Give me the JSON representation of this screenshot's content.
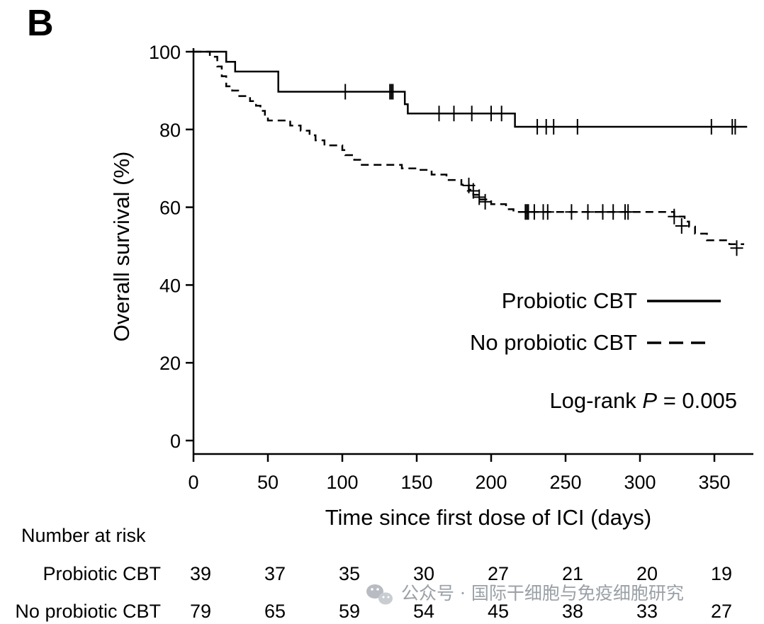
{
  "panel_label": "B",
  "watermark": "公众号 · 国际干细胞与免疫细胞研究",
  "chart_data": {
    "type": "line",
    "subtype": "kaplan-meier",
    "title": "",
    "xlabel": "Time since first dose of ICI (days)",
    "ylabel": "Overall survival (%)",
    "xlim": [
      0,
      375
    ],
    "ylim": [
      0,
      100
    ],
    "xticks": [
      0,
      50,
      100,
      150,
      200,
      250,
      300,
      350
    ],
    "yticks": [
      0,
      20,
      40,
      60,
      80,
      100
    ],
    "grid": false,
    "legend": {
      "placement": "right",
      "entries": [
        {
          "label": "Probiotic CBT",
          "style": "solid"
        },
        {
          "label": "No probiotic CBT",
          "style": "dashed"
        }
      ]
    },
    "annotation": {
      "prefix": "Log-rank ",
      "p_symbol": "P",
      "suffix": " = 0.005"
    },
    "series": [
      {
        "name": "Probiotic CBT",
        "style": "solid",
        "steps": [
          [
            0,
            100
          ],
          [
            22,
            97.4
          ],
          [
            28,
            94.9
          ],
          [
            57,
            89.7
          ],
          [
            134,
            89.7
          ],
          [
            142,
            86.5
          ],
          [
            144,
            84.1
          ],
          [
            215,
            84.1
          ],
          [
            216,
            80.7
          ],
          [
            372,
            80.7
          ]
        ],
        "censored": [
          [
            102,
            89.7
          ],
          [
            132,
            89.7
          ],
          [
            133,
            89.7
          ],
          [
            134,
            89.7
          ],
          [
            165,
            84.1
          ],
          [
            175,
            84.1
          ],
          [
            187,
            84.1
          ],
          [
            200,
            84.1
          ],
          [
            207,
            84.1
          ],
          [
            231,
            80.7
          ],
          [
            237,
            80.7
          ],
          [
            242,
            80.7
          ],
          [
            258,
            80.7
          ],
          [
            348,
            80.7
          ],
          [
            362,
            80.7
          ],
          [
            364,
            80.7
          ]
        ]
      },
      {
        "name": "No probiotic CBT",
        "style": "dashed",
        "steps": [
          [
            0,
            100
          ],
          [
            11,
            98.7
          ],
          [
            16,
            96.2
          ],
          [
            19,
            93.7
          ],
          [
            22,
            91.1
          ],
          [
            26,
            90
          ],
          [
            30,
            88.6
          ],
          [
            38,
            87.3
          ],
          [
            42,
            86.1
          ],
          [
            45,
            84.8
          ],
          [
            48,
            83.5
          ],
          [
            50,
            82.3
          ],
          [
            65,
            81
          ],
          [
            72,
            79.7
          ],
          [
            78,
            78.5
          ],
          [
            82,
            77.2
          ],
          [
            88,
            75.9
          ],
          [
            100,
            74.7
          ],
          [
            102,
            73.4
          ],
          [
            108,
            72.2
          ],
          [
            112,
            70.9
          ],
          [
            130,
            70.9
          ],
          [
            140,
            70
          ],
          [
            150,
            69.6
          ],
          [
            160,
            68.4
          ],
          [
            170,
            67
          ],
          [
            180,
            65.8
          ],
          [
            185,
            64.5
          ],
          [
            188,
            63.2
          ],
          [
            192,
            62
          ],
          [
            200,
            60.8
          ],
          [
            210,
            59.5
          ],
          [
            215,
            58.8
          ],
          [
            320,
            58.8
          ],
          [
            323,
            57.6
          ],
          [
            330,
            56.3
          ],
          [
            333,
            55
          ],
          [
            337,
            53.2
          ],
          [
            345,
            51.5
          ],
          [
            352,
            51.5
          ],
          [
            360,
            50.5
          ],
          [
            370,
            50.5
          ]
        ],
        "censored": [
          [
            185,
            65.6
          ],
          [
            188,
            64.2
          ],
          [
            192,
            62.6
          ],
          [
            196,
            61.4
          ],
          [
            223,
            58.8
          ],
          [
            224,
            58.8
          ],
          [
            225,
            58.8
          ],
          [
            229,
            58.8
          ],
          [
            235,
            58.8
          ],
          [
            238,
            58.8
          ],
          [
            254,
            58.8
          ],
          [
            265,
            58.8
          ],
          [
            275,
            58.8
          ],
          [
            282,
            58.8
          ],
          [
            290,
            58.8
          ],
          [
            292,
            58.8
          ],
          [
            323,
            57.6
          ],
          [
            328,
            55.2
          ],
          [
            365,
            49.5
          ]
        ]
      }
    ],
    "risk_table": {
      "title": "Number at risk",
      "timepoints": [
        0,
        50,
        100,
        150,
        200,
        250,
        300,
        350
      ],
      "rows": [
        {
          "label": "Probiotic CBT",
          "values": [
            "39",
            "37",
            "35",
            "30",
            "27",
            "21",
            "20",
            "19"
          ]
        },
        {
          "label": "No probiotic CBT",
          "values": [
            "79",
            "65",
            "59",
            "54",
            "45",
            "38",
            "33",
            "27"
          ]
        }
      ]
    }
  }
}
